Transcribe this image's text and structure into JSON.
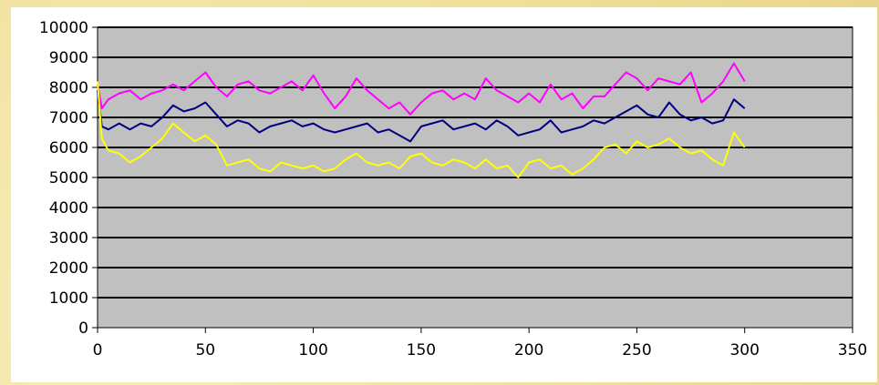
{
  "chart_data": {
    "type": "line",
    "title": "",
    "xlabel": "",
    "ylabel": "",
    "xlim": [
      0,
      350
    ],
    "ylim": [
      0,
      10000
    ],
    "x_ticks": [
      0,
      50,
      100,
      150,
      200,
      250,
      300,
      350
    ],
    "y_ticks": [
      0,
      1000,
      2000,
      3000,
      4000,
      5000,
      6000,
      7000,
      8000,
      9000,
      10000
    ],
    "x_tick_labels": [
      "0",
      "50",
      "100",
      "150",
      "200",
      "250",
      "300",
      "350"
    ],
    "y_tick_labels": [
      "0",
      "1000",
      "2000",
      "3000",
      "4000",
      "5000",
      "6000",
      "7000",
      "8000",
      "9000",
      "10000"
    ],
    "grid": true,
    "legend": "none",
    "plot_background": "#c0c0c0",
    "series": [
      {
        "color": "#ff00ff",
        "x": [
          0,
          2,
          5,
          10,
          15,
          20,
          25,
          30,
          35,
          40,
          45,
          50,
          55,
          60,
          65,
          70,
          75,
          80,
          85,
          90,
          95,
          100,
          105,
          110,
          115,
          120,
          125,
          130,
          135,
          140,
          145,
          150,
          155,
          160,
          165,
          170,
          175,
          180,
          185,
          190,
          195,
          200,
          205,
          210,
          215,
          220,
          225,
          230,
          235,
          240,
          245,
          250,
          255,
          260,
          265,
          270,
          275,
          280,
          285,
          290,
          295,
          300
        ],
        "y": [
          8100,
          7300,
          7600,
          7800,
          7900,
          7600,
          7800,
          7900,
          8100,
          7900,
          8200,
          8500,
          8000,
          7700,
          8100,
          8200,
          7900,
          7800,
          8000,
          8200,
          7900,
          8400,
          7800,
          7300,
          7700,
          8300,
          7900,
          7600,
          7300,
          7500,
          7100,
          7500,
          7800,
          7900,
          7600,
          7800,
          7600,
          8300,
          7900,
          7700,
          7500,
          7800,
          7500,
          8100,
          7600,
          7800,
          7300,
          7700,
          7700,
          8100,
          8500,
          8300,
          7900,
          8300,
          8200,
          8100,
          8500,
          7500,
          7800,
          8200,
          8800,
          8200
        ]
      },
      {
        "color": "#000080",
        "x": [
          0,
          2,
          5,
          10,
          15,
          20,
          25,
          30,
          35,
          40,
          45,
          50,
          55,
          60,
          65,
          70,
          75,
          80,
          85,
          90,
          95,
          100,
          105,
          110,
          115,
          120,
          125,
          130,
          135,
          140,
          145,
          150,
          155,
          160,
          165,
          170,
          175,
          180,
          185,
          190,
          195,
          200,
          205,
          210,
          215,
          220,
          225,
          230,
          235,
          240,
          245,
          250,
          255,
          260,
          265,
          270,
          275,
          280,
          285,
          290,
          295,
          300
        ],
        "y": [
          7900,
          6700,
          6600,
          6800,
          6600,
          6800,
          6700,
          7000,
          7400,
          7200,
          7300,
          7500,
          7100,
          6700,
          6900,
          6800,
          6500,
          6700,
          6800,
          6900,
          6700,
          6800,
          6600,
          6500,
          6600,
          6700,
          6800,
          6500,
          6600,
          6400,
          6200,
          6700,
          6800,
          6900,
          6600,
          6700,
          6800,
          6600,
          6900,
          6700,
          6400,
          6500,
          6600,
          6900,
          6500,
          6600,
          6700,
          6900,
          6800,
          7000,
          7200,
          7400,
          7100,
          7000,
          7500,
          7100,
          6900,
          7000,
          6800,
          6900,
          7600,
          7300
        ]
      },
      {
        "color": "#ffff00",
        "x": [
          0,
          2,
          5,
          10,
          15,
          20,
          25,
          30,
          35,
          40,
          45,
          50,
          55,
          60,
          65,
          70,
          75,
          80,
          85,
          90,
          95,
          100,
          105,
          110,
          115,
          120,
          125,
          130,
          135,
          140,
          145,
          150,
          155,
          160,
          165,
          170,
          175,
          180,
          185,
          190,
          195,
          200,
          205,
          210,
          215,
          220,
          225,
          230,
          235,
          240,
          245,
          250,
          255,
          260,
          265,
          270,
          275,
          280,
          285,
          290,
          295,
          300
        ],
        "y": [
          8200,
          6300,
          5900,
          5800,
          5500,
          5700,
          6000,
          6300,
          6800,
          6500,
          6200,
          6400,
          6100,
          5400,
          5500,
          5600,
          5300,
          5200,
          5500,
          5400,
          5300,
          5400,
          5200,
          5300,
          5600,
          5800,
          5500,
          5400,
          5500,
          5300,
          5700,
          5800,
          5500,
          5400,
          5600,
          5500,
          5300,
          5600,
          5300,
          5400,
          5000,
          5500,
          5600,
          5300,
          5400,
          5100,
          5300,
          5600,
          6000,
          6100,
          5800,
          6200,
          6000,
          6100,
          6300,
          6000,
          5800,
          5900,
          5600,
          5400,
          6500,
          6000
        ]
      }
    ]
  }
}
